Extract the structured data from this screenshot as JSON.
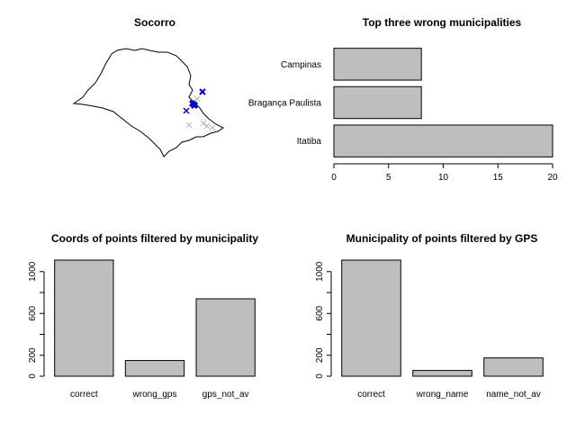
{
  "colors": {
    "bar": "#bebebe",
    "marker_blue": "#0000cc",
    "marker_grey": "#b4b4b4"
  },
  "chart_data": [
    {
      "type": "scatter",
      "title": "Socorro",
      "description_items": [
        "map outline",
        "blue x markers",
        "grey x markers"
      ],
      "markers_note": "points plotted over state outline"
    },
    {
      "type": "bar",
      "orientation": "horizontal",
      "title": "Top three wrong municipalities",
      "categories": [
        "Itatiba",
        "Bragança Paulista",
        "Campinas"
      ],
      "values": [
        20,
        8,
        8
      ],
      "xlim": [
        0,
        20
      ],
      "xticks": [
        0,
        5,
        10,
        15,
        20
      ]
    },
    {
      "type": "bar",
      "title": "Coords of points filtered by municipality",
      "categories": [
        "correct",
        "wrong_gps",
        "gps_not_av"
      ],
      "values": [
        1110,
        150,
        740
      ],
      "ylim": [
        0,
        1110
      ],
      "yticks": [
        0,
        200,
        400,
        600,
        800,
        1000
      ],
      "ytick_labels": [
        "0",
        "200",
        "",
        "600",
        "",
        "1000"
      ]
    },
    {
      "type": "bar",
      "title": "Municipality of points filtered by GPS",
      "categories": [
        "correct",
        "wrong_name",
        "name_not_av"
      ],
      "values": [
        1110,
        55,
        175
      ],
      "ylim": [
        0,
        1110
      ],
      "yticks": [
        0,
        200,
        400,
        600,
        800,
        1000
      ],
      "ytick_labels": [
        "0",
        "200",
        "",
        "600",
        "",
        "1000"
      ]
    }
  ]
}
